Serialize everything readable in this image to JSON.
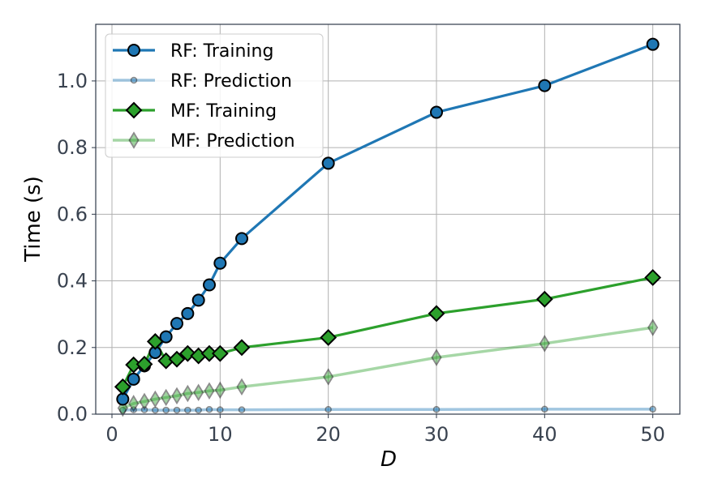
{
  "chart_data": {
    "type": "line",
    "xlabel": "D",
    "ylabel": "Time (s)",
    "xlim": [
      -1.5,
      52.5
    ],
    "ylim": [
      0.0,
      1.17
    ],
    "xticks": [
      0,
      10,
      20,
      30,
      40,
      50
    ],
    "yticks": [
      0.0,
      0.2,
      0.4,
      0.6,
      0.8,
      1.0
    ],
    "xtick_labels": [
      "0",
      "10",
      "20",
      "30",
      "40",
      "50"
    ],
    "ytick_labels": [
      "0.0",
      "0.2",
      "0.4",
      "0.6",
      "0.8",
      "1.0"
    ],
    "grid": true,
    "legend_position": "top-left",
    "x": [
      1,
      2,
      3,
      4,
      5,
      6,
      7,
      8,
      9,
      10,
      12,
      20,
      30,
      40,
      50
    ],
    "series": [
      {
        "name": "RF: Training",
        "color": "#1f77b4",
        "marker": "circle",
        "values": [
          0.045,
          0.105,
          0.145,
          0.185,
          0.232,
          0.272,
          0.302,
          0.342,
          0.388,
          0.453,
          0.527,
          0.753,
          0.906,
          0.986,
          1.11
        ]
      },
      {
        "name": "RF: Prediction",
        "color": "#1f77b4",
        "faded": true,
        "marker": "small-circle",
        "values": [
          0.012,
          0.013,
          0.013,
          0.012,
          0.012,
          0.012,
          0.012,
          0.012,
          0.014,
          0.013,
          0.013,
          0.014,
          0.014,
          0.015,
          0.015
        ]
      },
      {
        "name": "MF: Training",
        "color": "#2ca02c",
        "marker": "diamond",
        "values": [
          0.082,
          0.148,
          0.15,
          0.218,
          0.16,
          0.165,
          0.182,
          0.175,
          0.182,
          0.182,
          0.2,
          0.23,
          0.302,
          0.345,
          0.41
        ]
      },
      {
        "name": "MF: Prediction",
        "color": "#2ca02c",
        "faded": true,
        "marker": "thin-diamond",
        "values": [
          0.018,
          0.032,
          0.038,
          0.045,
          0.05,
          0.055,
          0.062,
          0.065,
          0.07,
          0.072,
          0.082,
          0.112,
          0.17,
          0.212,
          0.26
        ]
      }
    ]
  }
}
